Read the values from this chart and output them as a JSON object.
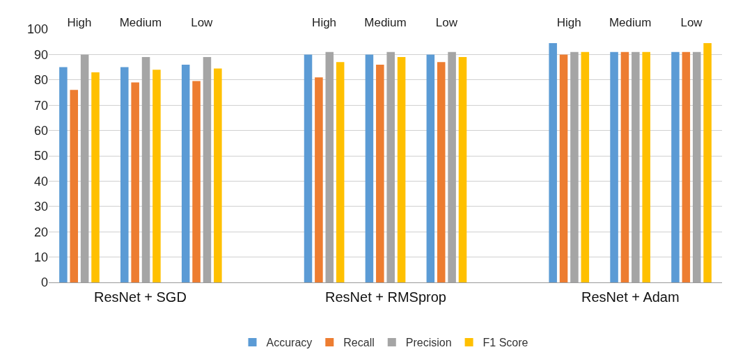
{
  "chart_data": {
    "type": "bar",
    "categories": [
      "High",
      "Medium",
      "Low",
      null,
      "High",
      "Medium",
      "Low",
      null,
      "High",
      "Medium",
      "Low"
    ],
    "series": [
      {
        "name": "Accuracy",
        "color": "#5b9bd5",
        "values": [
          85,
          85,
          86,
          null,
          90,
          90,
          90,
          null,
          94.5,
          91,
          91
        ]
      },
      {
        "name": "Recall",
        "color": "#ed7d31",
        "values": [
          76,
          79,
          79.5,
          null,
          81,
          86,
          87,
          null,
          90,
          91,
          91
        ]
      },
      {
        "name": "Precision",
        "color": "#a5a5a5",
        "values": [
          90,
          89,
          89,
          null,
          91,
          91,
          91,
          null,
          91,
          91,
          91
        ]
      },
      {
        "name": "F1 Score",
        "color": "#ffc000",
        "values": [
          83,
          84,
          84.5,
          null,
          87,
          89,
          89,
          null,
          91,
          91,
          94.5
        ]
      }
    ],
    "annotations": [
      "ResNet + SGD",
      "ResNet + RMSprop",
      "ResNet + Adam"
    ],
    "ylim": [
      0,
      100
    ],
    "yticks": [
      0,
      10,
      20,
      30,
      40,
      50,
      60,
      70,
      80,
      90,
      100
    ],
    "grid": "y",
    "legend": "bottom"
  }
}
